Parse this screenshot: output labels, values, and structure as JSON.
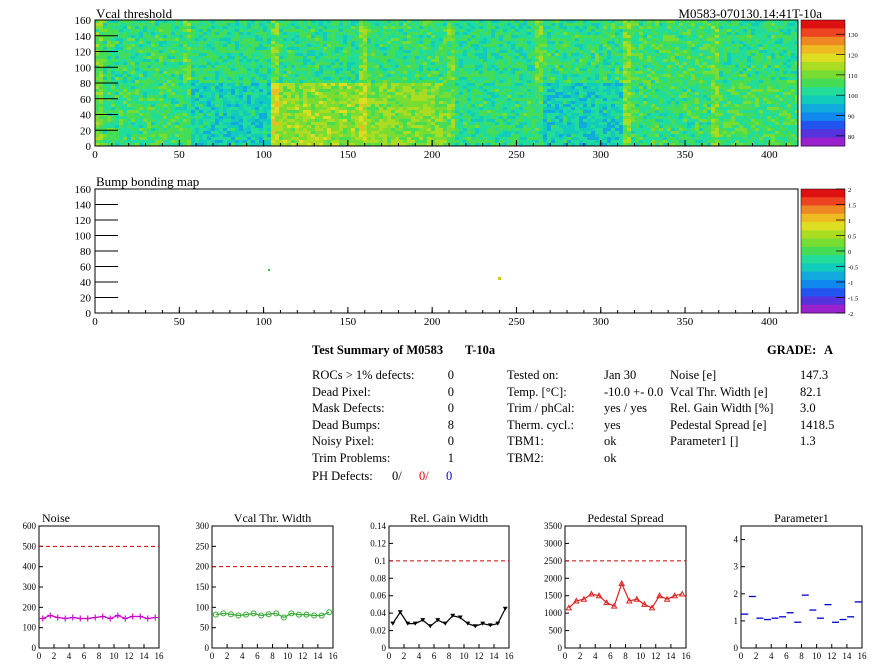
{
  "module_id": "M0583-070130.14:41T-10a",
  "colors": {
    "noise": "#cc00cc",
    "vcal": "#33aa33",
    "gain": "#000000",
    "pedestal": "#dd2222",
    "param1": "#0000cc",
    "threshold_line": "#cc0000"
  },
  "maps": [
    {
      "title": "Vcal threshold",
      "x_ticks": [
        "0",
        "50",
        "100",
        "150",
        "200",
        "250",
        "300",
        "350",
        "400"
      ],
      "y_ticks": [
        "0",
        "20",
        "40",
        "60",
        "80",
        "100",
        "120",
        "140",
        "160"
      ],
      "palette_ticks": [
        "130",
        "120",
        "110",
        "100",
        "90",
        "80"
      ]
    },
    {
      "title": "Bump bonding map",
      "x_ticks": [
        "0",
        "50",
        "100",
        "150",
        "200",
        "250",
        "300",
        "350",
        "400"
      ],
      "y_ticks": [
        "0",
        "20",
        "40",
        "60",
        "80",
        "100",
        "120",
        "140",
        "160"
      ],
      "palette_ticks": [
        "2",
        "1.5",
        "1",
        "0.5",
        "0",
        "-0.5",
        "-1",
        "-1.5",
        "-2"
      ]
    }
  ],
  "summary": {
    "title": "Test Summary of M0583",
    "tag": "T-10a",
    "grade_label": "GRADE:",
    "grade": "A",
    "defects": [
      {
        "label": "ROCs > 1% defects:",
        "value": "0"
      },
      {
        "label": "Dead Pixel:",
        "value": "0"
      },
      {
        "label": "Mask Defects:",
        "value": "0"
      },
      {
        "label": "Dead Bumps:",
        "value": "8"
      },
      {
        "label": "Noisy Pixel:",
        "value": "0"
      },
      {
        "label": "Trim Problems:",
        "value": "1"
      }
    ],
    "ph_defects": {
      "label": "PH Defects:",
      "v1": "0/",
      "v2": "0/",
      "v3": "0"
    },
    "conditions": [
      {
        "label": "Tested on:",
        "value": "Jan 30"
      },
      {
        "label": "Temp. [°C]:",
        "value": "-10.0 +- 0.0"
      },
      {
        "label": "Trim / phCal:",
        "value": "yes / yes"
      },
      {
        "label": "Therm. cycl.:",
        "value": "yes"
      },
      {
        "label": "TBM1:",
        "value": "ok"
      },
      {
        "label": "TBM2:",
        "value": "ok"
      }
    ],
    "results": [
      {
        "label": "Noise [e]",
        "value": "147.3"
      },
      {
        "label": "Vcal Thr. Width [e]",
        "value": "82.1"
      },
      {
        "label": "Rel. Gain Width [%]",
        "value": "3.0"
      },
      {
        "label": "Pedestal Spread [e]",
        "value": "1418.5"
      },
      {
        "label": "Parameter1 []",
        "value": "1.3"
      }
    ]
  },
  "chart_data": [
    {
      "type": "line",
      "title": "Noise",
      "x": [
        0,
        1,
        2,
        3,
        4,
        5,
        6,
        7,
        8,
        9,
        10,
        11,
        12,
        13,
        14,
        15
      ],
      "ylim": [
        0,
        600
      ],
      "threshold": 500,
      "y_ticks": [
        "0",
        "100",
        "200",
        "300",
        "400",
        "500",
        "600"
      ],
      "x_ticks": [
        "0",
        "2",
        "4",
        "6",
        "8",
        "10",
        "12",
        "14",
        "16"
      ],
      "values": [
        145,
        160,
        150,
        145,
        150,
        145,
        145,
        150,
        155,
        145,
        160,
        145,
        155,
        155,
        145,
        150
      ]
    },
    {
      "type": "line",
      "title": "Vcal Thr. Width",
      "x": [
        0,
        1,
        2,
        3,
        4,
        5,
        6,
        7,
        8,
        9,
        10,
        11,
        12,
        13,
        14,
        15
      ],
      "ylim": [
        0,
        300
      ],
      "threshold": 200,
      "y_ticks": [
        "0",
        "50",
        "100",
        "150",
        "200",
        "250",
        "300"
      ],
      "x_ticks": [
        "0",
        "2",
        "4",
        "6",
        "8",
        "10",
        "12",
        "14",
        "16"
      ],
      "values": [
        82,
        85,
        83,
        80,
        82,
        85,
        80,
        83,
        85,
        75,
        85,
        82,
        82,
        80,
        80,
        88
      ]
    },
    {
      "type": "line",
      "title": "Rel. Gain Width",
      "x": [
        0,
        1,
        2,
        3,
        4,
        5,
        6,
        7,
        8,
        9,
        10,
        11,
        12,
        13,
        14,
        15
      ],
      "ylim": [
        0,
        0.14
      ],
      "threshold": 0.1,
      "y_ticks": [
        "0",
        "0.02",
        "0.04",
        "0.06",
        "0.08",
        "0.1",
        "0.12",
        "0.14"
      ],
      "x_ticks": [
        "0",
        "2",
        "4",
        "6",
        "8",
        "10",
        "12",
        "14",
        "16"
      ],
      "values": [
        0.028,
        0.041,
        0.028,
        0.028,
        0.032,
        0.025,
        0.032,
        0.028,
        0.037,
        0.035,
        0.028,
        0.025,
        0.028,
        0.026,
        0.028,
        0.045
      ]
    },
    {
      "type": "line",
      "title": "Pedestal Spread",
      "x": [
        0,
        1,
        2,
        3,
        4,
        5,
        6,
        7,
        8,
        9,
        10,
        11,
        12,
        13,
        14,
        15
      ],
      "ylim": [
        0,
        3500
      ],
      "threshold": 2500,
      "y_ticks": [
        "0",
        "500",
        "1000",
        "1500",
        "2000",
        "2500",
        "3000",
        "3500"
      ],
      "x_ticks": [
        "0",
        "2",
        "4",
        "6",
        "8",
        "10",
        "12",
        "14",
        "16"
      ],
      "values": [
        1150,
        1350,
        1400,
        1550,
        1500,
        1300,
        1200,
        1850,
        1350,
        1400,
        1250,
        1150,
        1500,
        1400,
        1500,
        1550
      ]
    },
    {
      "type": "scatter",
      "title": "Parameter1",
      "x": [
        0,
        1,
        2,
        3,
        4,
        5,
        6,
        7,
        8,
        9,
        10,
        11,
        12,
        13,
        14,
        15
      ],
      "ylim": [
        0,
        4.5
      ],
      "threshold": null,
      "y_ticks": [
        "0",
        "1",
        "2",
        "3",
        "4"
      ],
      "x_ticks": [
        "0",
        "2",
        "4",
        "6",
        "8",
        "10",
        "12",
        "14",
        "16"
      ],
      "values": [
        1.25,
        1.9,
        1.1,
        1.05,
        1.1,
        1.15,
        1.3,
        0.95,
        1.95,
        1.4,
        1.1,
        1.6,
        0.95,
        1.05,
        1.15,
        1.7
      ]
    }
  ]
}
